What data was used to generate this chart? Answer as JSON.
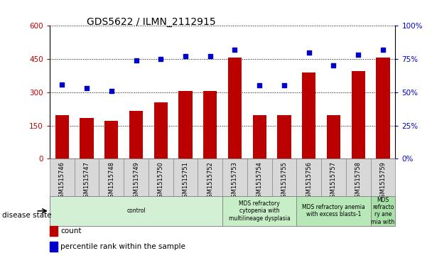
{
  "title": "GDS5622 / ILMN_2112915",
  "samples": [
    "GSM1515746",
    "GSM1515747",
    "GSM1515748",
    "GSM1515749",
    "GSM1515750",
    "GSM1515751",
    "GSM1515752",
    "GSM1515753",
    "GSM1515754",
    "GSM1515755",
    "GSM1515756",
    "GSM1515757",
    "GSM1515758",
    "GSM1515759"
  ],
  "counts": [
    195,
    185,
    170,
    215,
    255,
    305,
    305,
    455,
    195,
    195,
    390,
    195,
    395,
    455
  ],
  "percentile_ranks": [
    56,
    53,
    51,
    74,
    75,
    77,
    77,
    82,
    55,
    55,
    80,
    70,
    78,
    82
  ],
  "bar_color": "#bb0000",
  "dot_color": "#0000cc",
  "ylim_left": [
    0,
    600
  ],
  "ylim_right": [
    0,
    100
  ],
  "yticks_left": [
    0,
    150,
    300,
    450,
    600
  ],
  "yticks_right": [
    0,
    25,
    50,
    75,
    100
  ],
  "disease_groups": [
    {
      "label": "control",
      "start": 0,
      "end": 7,
      "color": "#d4f0d4"
    },
    {
      "label": "MDS refractory\ncytopenia with\nmultilineage dysplasia",
      "start": 7,
      "end": 10,
      "color": "#c8eec8"
    },
    {
      "label": "MDS refractory anemia\nwith excess blasts-1",
      "start": 10,
      "end": 13,
      "color": "#b8e8b8"
    },
    {
      "label": "MDS\nrefracto\nry ane\nmia with",
      "start": 13,
      "end": 14,
      "color": "#a8e0a8"
    }
  ],
  "disease_state_label": "disease state",
  "legend_count_label": "count",
  "legend_percentile_label": "percentile rank within the sample",
  "background_color": "#ffffff",
  "plot_bg_color": "#ffffff",
  "grid_color": "#000000"
}
